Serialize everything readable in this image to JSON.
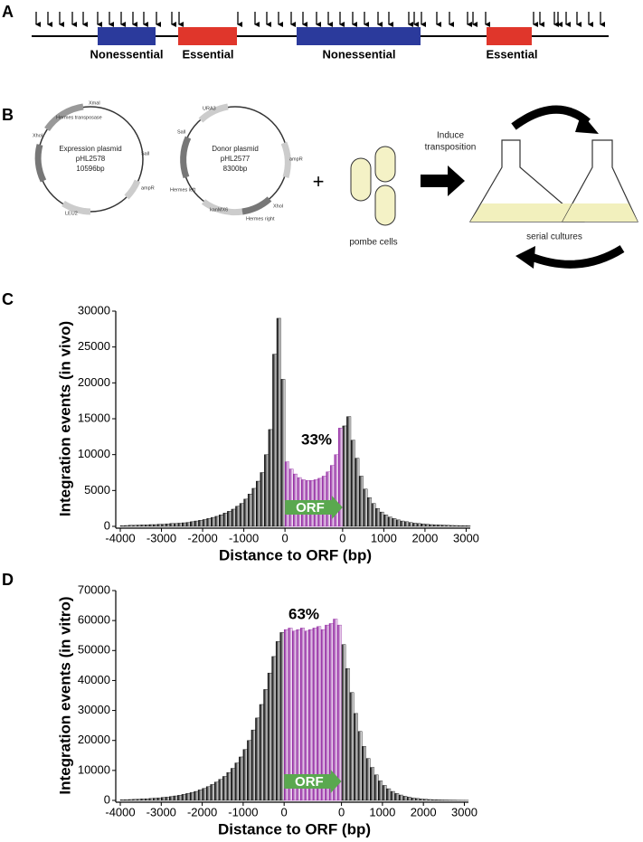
{
  "panel_labels": [
    "A",
    "B",
    "C",
    "D"
  ],
  "panel_a": {
    "regions": [
      "Nonessential",
      "Essential",
      "Nonessential",
      "Essential"
    ]
  },
  "panel_b": {
    "expression_plasmid": {
      "name": "Expression plasmid",
      "id": "pHL2578",
      "size": "10596bp",
      "features": [
        "XmaI",
        "Hermes transposase",
        "XhoI",
        "SalI",
        "ampR",
        "LEU2"
      ]
    },
    "donor_plasmid": {
      "name": "Donor plasmid",
      "id": "pHL2577",
      "size": "8300bp",
      "features": [
        "URA3",
        "ampR",
        "SalI",
        "Hermes left",
        "kanMX6",
        "Hermes right",
        "XhoI"
      ]
    },
    "plus": "+",
    "cells_label": "pombe cells",
    "step": [
      "Induce",
      "transposition"
    ],
    "cultures_label": "serial cultures"
  },
  "chart_data": [
    {
      "type": "bar",
      "ylabel": "Integration events (in vivo)",
      "xlabel": "Distance to ORF (bp)",
      "categories": [
        "-4000",
        null,
        null,
        null,
        null,
        null,
        null,
        null,
        null,
        null,
        "-3000",
        null,
        null,
        null,
        null,
        null,
        null,
        null,
        null,
        null,
        "-2000",
        null,
        null,
        null,
        null,
        null,
        null,
        null,
        null,
        null,
        "-1000",
        null,
        null,
        null,
        null,
        null,
        null,
        null,
        null,
        null,
        "0",
        null,
        null,
        null,
        null,
        null,
        null,
        null,
        null,
        null,
        null,
        null,
        null,
        null,
        "0",
        null,
        null,
        null,
        null,
        null,
        null,
        null,
        null,
        null,
        "1000",
        null,
        null,
        null,
        null,
        null,
        null,
        null,
        null,
        null,
        "2000",
        null,
        null,
        null,
        null,
        null,
        null,
        null,
        null,
        null,
        "3000"
      ],
      "series": [
        {
          "color": "#000000",
          "values": [
            100,
            120,
            150,
            150,
            180,
            200,
            200,
            250,
            250,
            300,
            300,
            350,
            400,
            400,
            450,
            500,
            550,
            650,
            750,
            850,
            950,
            1100,
            1250,
            1400,
            1600,
            1850,
            2100,
            2400,
            2800,
            3200,
            3800,
            4500,
            5300,
            6300,
            7500,
            10000,
            13500,
            24000,
            29000,
            20500,
            null,
            null,
            null,
            null,
            null,
            null,
            null,
            null,
            null,
            null,
            null,
            null,
            null,
            null,
            14000,
            15300,
            12000,
            9500,
            7000,
            5200,
            4000,
            3200,
            2500,
            2000,
            1600,
            1300,
            1100,
            900,
            750,
            650,
            550,
            450,
            400,
            350,
            300,
            250,
            220,
            200,
            180,
            150,
            130,
            120,
            100,
            100,
            80
          ]
        },
        {
          "color": "#8e1f9e",
          "values": [
            null,
            null,
            null,
            null,
            null,
            null,
            null,
            null,
            null,
            null,
            null,
            null,
            null,
            null,
            null,
            null,
            null,
            null,
            null,
            null,
            null,
            null,
            null,
            null,
            null,
            null,
            null,
            null,
            null,
            null,
            null,
            null,
            null,
            null,
            null,
            null,
            null,
            null,
            null,
            null,
            9000,
            8000,
            7300,
            6800,
            6500,
            6400,
            6400,
            6500,
            6700,
            7000,
            7600,
            8500,
            10000,
            13700,
            null,
            null,
            null,
            null,
            null,
            null,
            null,
            null,
            null,
            null,
            null,
            null,
            null,
            null,
            null,
            null,
            null,
            null,
            null,
            null,
            null,
            null,
            null,
            null,
            null,
            null,
            null,
            null,
            null,
            null,
            null
          ]
        }
      ],
      "ylim": [
        0,
        30000
      ],
      "yticks": [
        0,
        5000,
        10000,
        15000,
        20000,
        25000,
        30000
      ],
      "annotations": [
        "33%",
        "ORF"
      ]
    },
    {
      "type": "bar",
      "ylabel": "Integration events (in vitro)",
      "xlabel": "Distance to ORF (bp)",
      "categories": [
        "-4000",
        null,
        null,
        null,
        null,
        null,
        null,
        null,
        null,
        null,
        "-3000",
        null,
        null,
        null,
        null,
        null,
        null,
        null,
        null,
        null,
        "-2000",
        null,
        null,
        null,
        null,
        null,
        null,
        null,
        null,
        null,
        "-1000",
        null,
        null,
        null,
        null,
        null,
        null,
        null,
        null,
        null,
        "0",
        null,
        null,
        null,
        null,
        null,
        null,
        null,
        null,
        null,
        null,
        null,
        null,
        null,
        "0",
        null,
        null,
        null,
        null,
        null,
        null,
        null,
        null,
        null,
        "1000",
        null,
        null,
        null,
        null,
        null,
        null,
        null,
        null,
        null,
        "2000",
        null,
        null,
        null,
        null,
        null,
        null,
        null,
        null,
        null,
        "3000"
      ],
      "series": [
        {
          "color": "#000000",
          "values": [
            200,
            250,
            300,
            350,
            400,
            500,
            550,
            650,
            750,
            850,
            1000,
            1100,
            1300,
            1500,
            1700,
            2000,
            2300,
            2600,
            3000,
            3500,
            4000,
            4600,
            5300,
            6100,
            7000,
            8000,
            9300,
            10700,
            12500,
            14500,
            17000,
            20000,
            23500,
            27500,
            32000,
            37000,
            42500,
            48000,
            53000,
            56000,
            null,
            null,
            null,
            null,
            null,
            null,
            null,
            null,
            null,
            null,
            null,
            null,
            null,
            null,
            52000,
            44000,
            36000,
            29000,
            23000,
            18000,
            14000,
            11000,
            8500,
            6500,
            5000,
            3900,
            3000,
            2300,
            1800,
            1400,
            1100,
            850,
            650,
            500,
            400,
            300,
            250,
            200,
            150,
            120,
            100,
            80,
            60,
            50,
            40
          ]
        },
        {
          "color": "#8e1f9e",
          "values": [
            null,
            null,
            null,
            null,
            null,
            null,
            null,
            null,
            null,
            null,
            null,
            null,
            null,
            null,
            null,
            null,
            null,
            null,
            null,
            null,
            null,
            null,
            null,
            null,
            null,
            null,
            null,
            null,
            null,
            null,
            null,
            null,
            null,
            null,
            null,
            null,
            null,
            null,
            null,
            null,
            57000,
            57500,
            56500,
            57000,
            57500,
            56500,
            57000,
            57500,
            58000,
            57000,
            58500,
            59000,
            60500,
            58500,
            null,
            null,
            null,
            null,
            null,
            null,
            null,
            null,
            null,
            null,
            null,
            null,
            null,
            null,
            null,
            null,
            null,
            null,
            null,
            null,
            null,
            null,
            null,
            null,
            null,
            null,
            null,
            null,
            null,
            null,
            null
          ]
        }
      ],
      "ylim": [
        0,
        70000
      ],
      "yticks": [
        0,
        10000,
        20000,
        30000,
        40000,
        50000,
        60000,
        70000
      ],
      "annotations": [
        "63%",
        "ORF"
      ]
    }
  ]
}
